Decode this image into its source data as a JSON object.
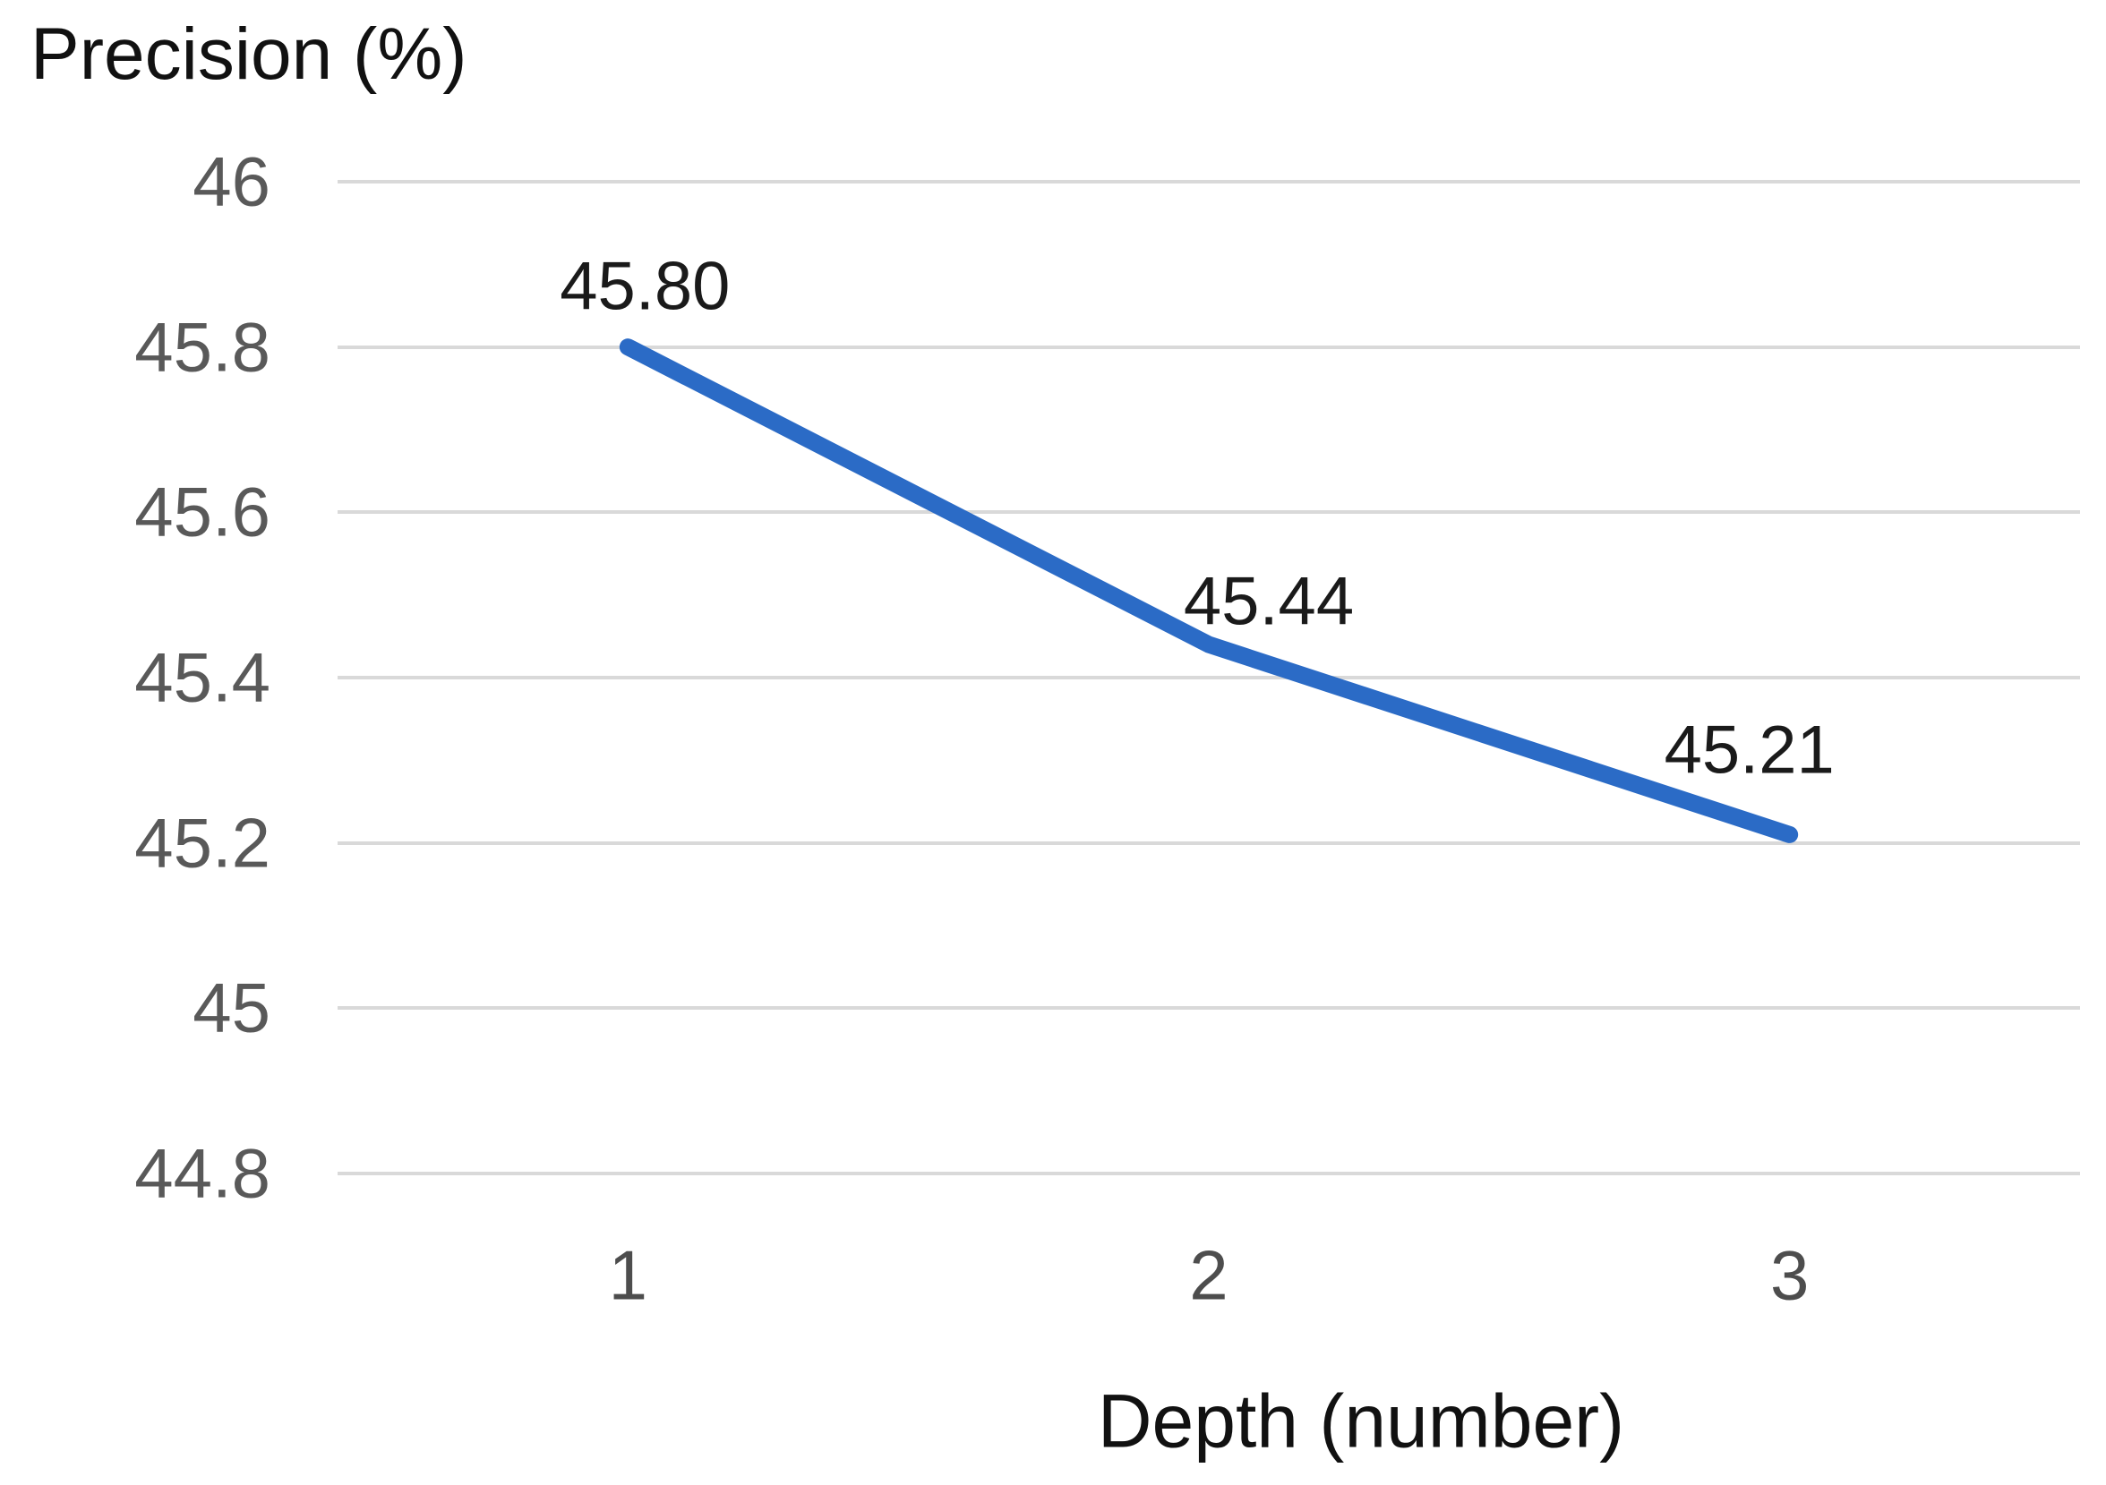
{
  "chart_data": {
    "type": "line",
    "ylabel": "Precision (%)",
    "xlabel": "Depth (number)",
    "categories": [
      "1",
      "2",
      "3"
    ],
    "x": [
      1,
      2,
      3
    ],
    "values": [
      45.8,
      45.44,
      45.21
    ],
    "data_labels": [
      "45.80",
      "45.44",
      "45.21"
    ],
    "yticks": [
      "46",
      "45.8",
      "45.6",
      "45.4",
      "45.2",
      "45",
      "44.8"
    ],
    "ylim": [
      44.8,
      46
    ],
    "ytick_step": 0.2,
    "grid": true,
    "legend": "none",
    "colors": {
      "line": "#2b6bc6",
      "gridline": "#d9d9d9",
      "y_tick_text": "#595959",
      "x_tick_text": "#4d4d4d",
      "data_label_text": "#1a1a1a",
      "axis_title_text": "#111111",
      "ylabel_text": "#111111",
      "background": "#ffffff"
    }
  }
}
